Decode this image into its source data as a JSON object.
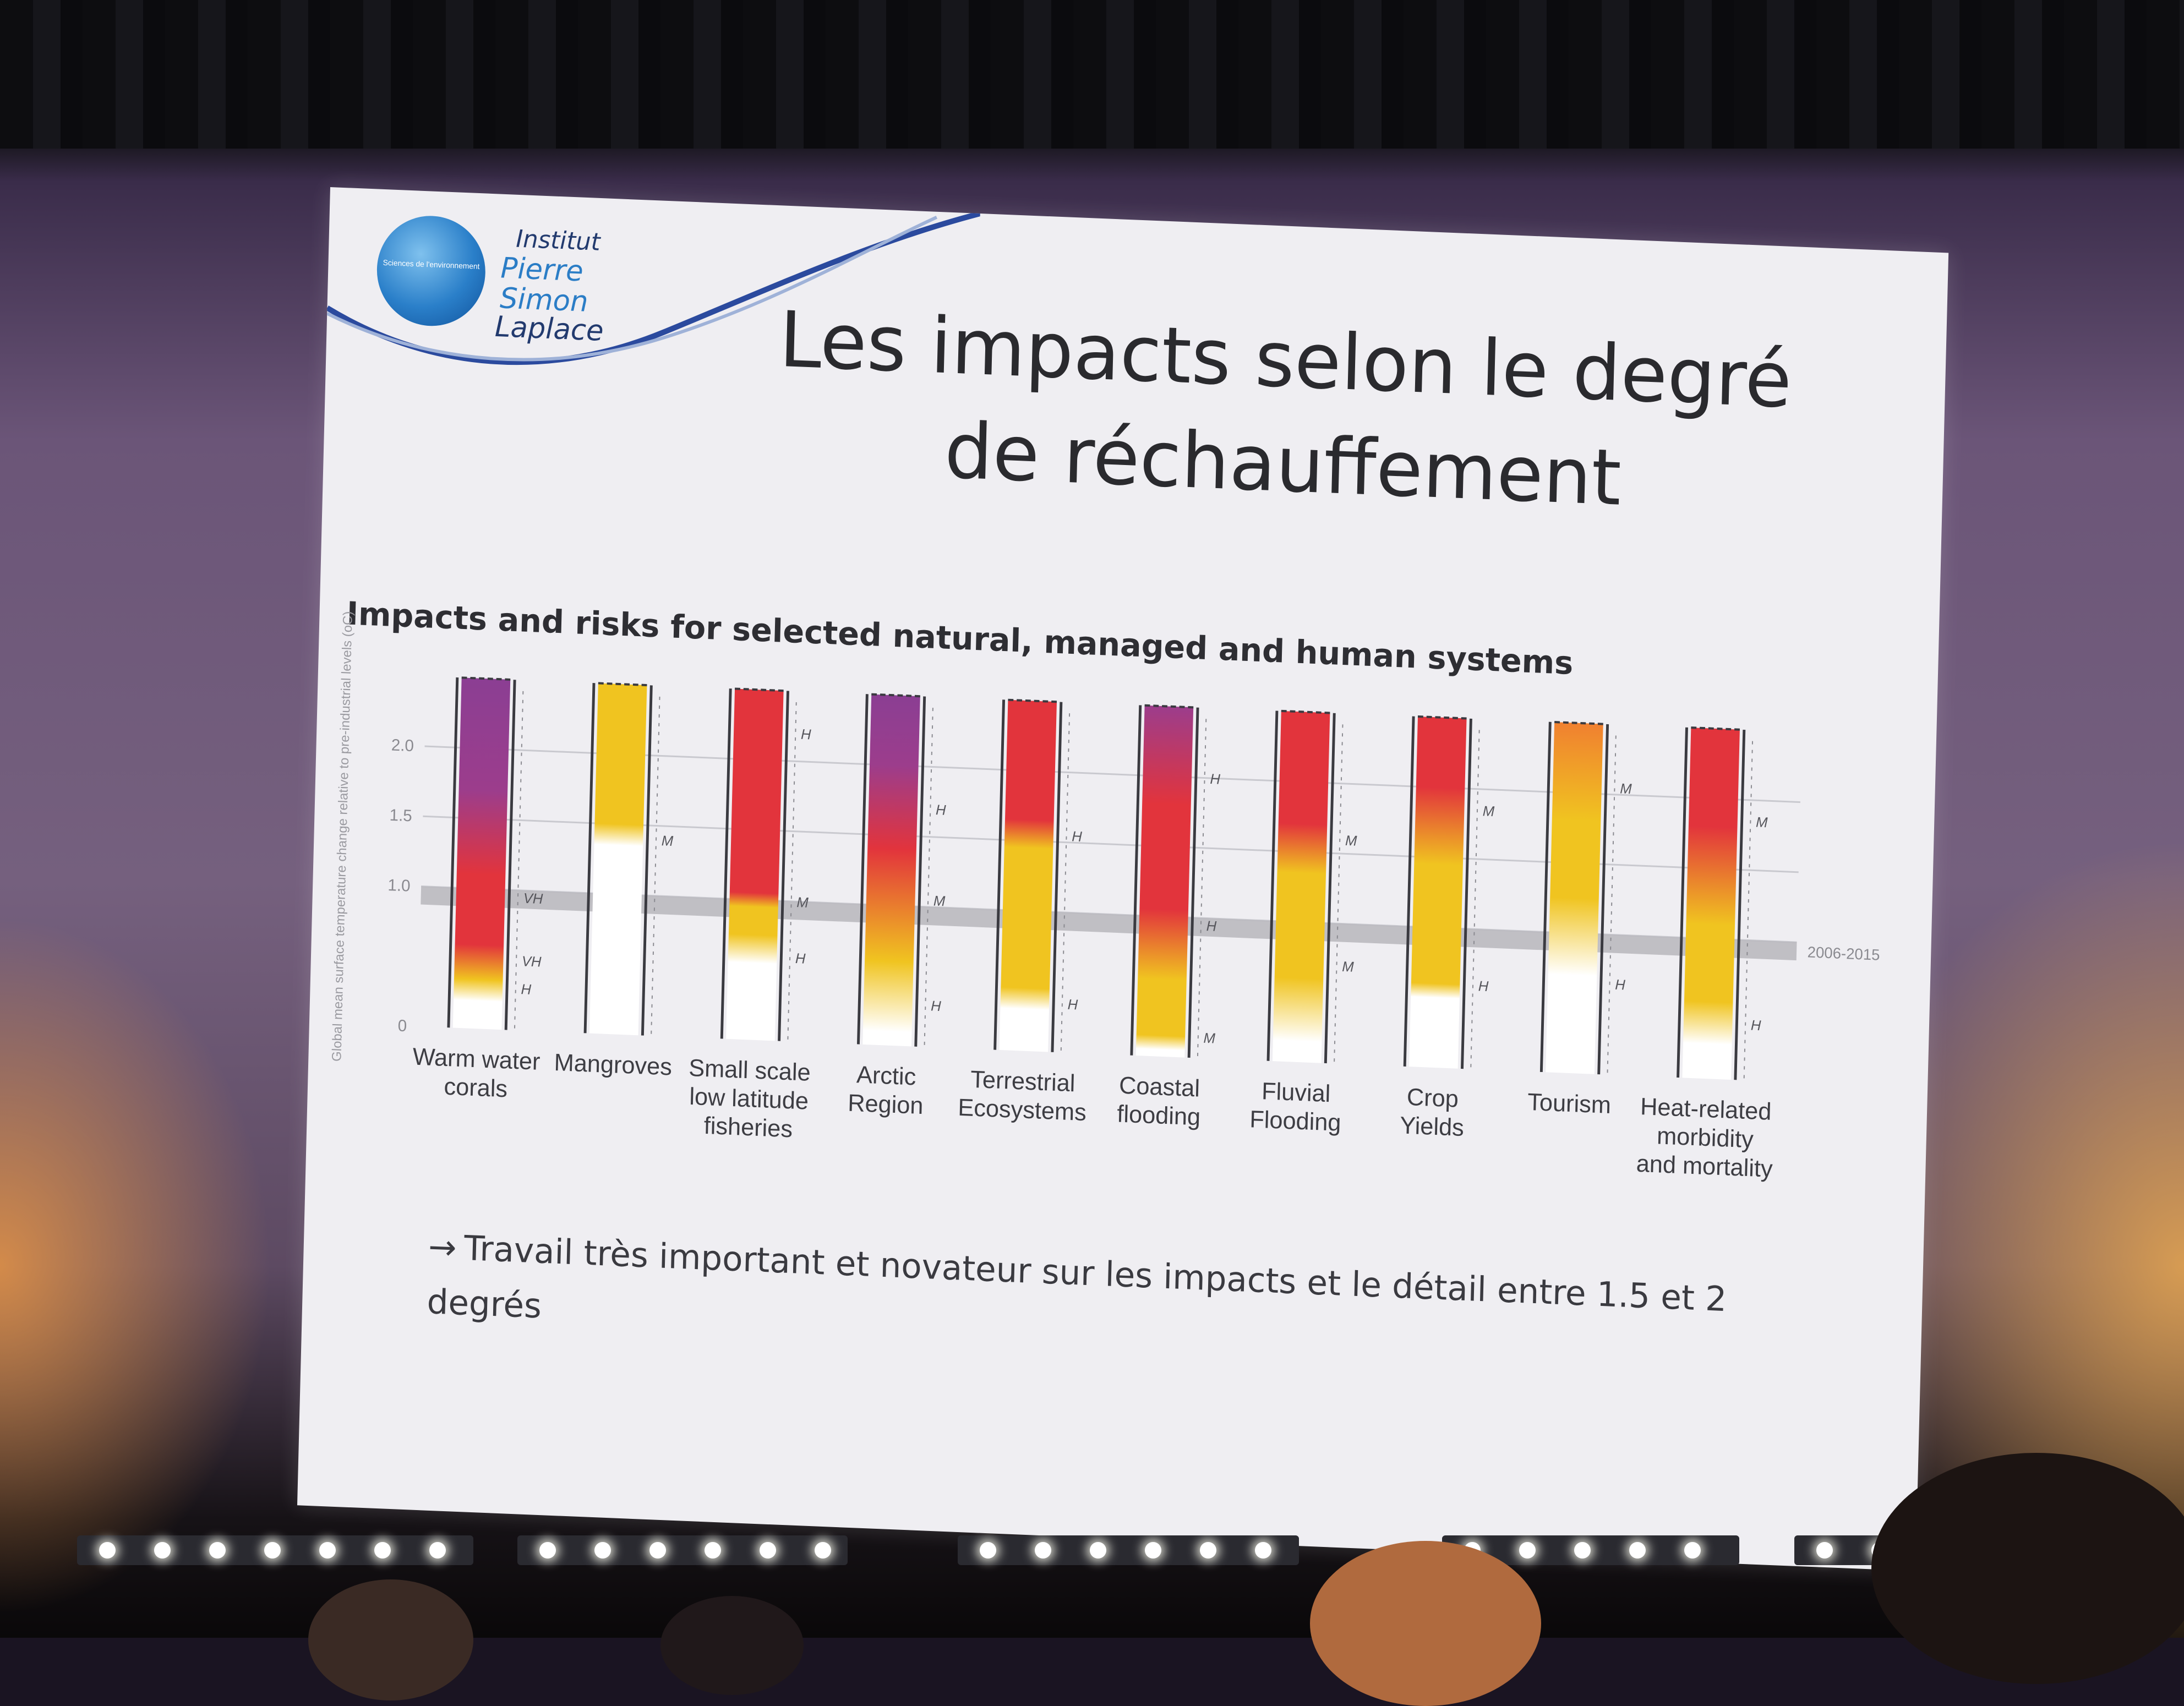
{
  "slide": {
    "logo": {
      "line1": "Institut",
      "line2": "Pierre",
      "line3": "Simon",
      "line4": "Laplace",
      "circle_text": "Sciences de l'environnement"
    },
    "title": "Les impacts selon le degré de réchauffement",
    "note_arrow": "→",
    "note": "Travail très important et novateur sur les impacts et le détail entre 1.5 et 2 degrés"
  },
  "chart_data": {
    "type": "bar",
    "title": "Impacts and risks for selected natural, managed and human systems",
    "ylabel": "Global mean surface temperature change relative to pre-industrial levels (oC)",
    "yticks": [
      "0",
      "1.0",
      "1.5",
      "2.0"
    ],
    "ylim": [
      0,
      2.5
    ],
    "reference_band": {
      "label": "2006-2015",
      "from": 0.87,
      "to": 1.0
    },
    "colors": {
      "undetectable": "#ffffff",
      "moderate": "#f0c420",
      "high": "#e2343c",
      "very_high": "#8b3e93"
    },
    "categories": [
      {
        "label": [
          "Warm water",
          "corals"
        ],
        "stops": [
          [
            0,
            "#ffffff"
          ],
          [
            0.2,
            "#ffffff"
          ],
          [
            0.35,
            "#f0c420"
          ],
          [
            0.6,
            "#e2343c"
          ],
          [
            1.1,
            "#e2343c"
          ],
          [
            1.7,
            "#9c3d8c"
          ],
          [
            2.5,
            "#8b3e93"
          ]
        ],
        "confidence": [
          {
            "text": "H",
            "y": 0.3
          },
          {
            "text": "VH",
            "y": 0.5
          },
          {
            "text": "VH",
            "y": 0.95
          }
        ]
      },
      {
        "label": [
          "Mangroves"
        ],
        "stops": [
          [
            0,
            "#ffffff"
          ],
          [
            1.35,
            "#ffffff"
          ],
          [
            1.5,
            "#f0c420"
          ],
          [
            2.5,
            "#f0c420"
          ]
        ],
        "confidence": [
          {
            "text": "M",
            "y": 1.4
          }
        ]
      },
      {
        "label": [
          "Small scale",
          "low latitude",
          "fisheries"
        ],
        "stops": [
          [
            0,
            "#ffffff"
          ],
          [
            0.55,
            "#ffffff"
          ],
          [
            0.75,
            "#f0c420"
          ],
          [
            0.95,
            "#f0c420"
          ],
          [
            1.05,
            "#e2343c"
          ],
          [
            2.5,
            "#e2343c"
          ]
        ],
        "confidence": [
          {
            "text": "H",
            "y": 0.6
          },
          {
            "text": "M",
            "y": 1.0
          },
          {
            "text": "H",
            "y": 2.2
          }
        ]
      },
      {
        "label": [
          "Arctic",
          "Region"
        ],
        "stops": [
          [
            0,
            "#ffffff"
          ],
          [
            0.1,
            "#ffffff"
          ],
          [
            0.6,
            "#f0c420"
          ],
          [
            1.4,
            "#e2343c"
          ],
          [
            2.0,
            "#9c3d8c"
          ],
          [
            2.5,
            "#8b3e93"
          ]
        ],
        "confidence": [
          {
            "text": "H",
            "y": 0.3
          },
          {
            "text": "M",
            "y": 1.05
          },
          {
            "text": "H",
            "y": 1.7
          }
        ]
      },
      {
        "label": [
          "Terrestrial",
          "Ecosystems"
        ],
        "stops": [
          [
            0,
            "#ffffff"
          ],
          [
            0.3,
            "#ffffff"
          ],
          [
            0.45,
            "#f0c420"
          ],
          [
            1.45,
            "#f0c420"
          ],
          [
            1.65,
            "#e2343c"
          ],
          [
            2.5,
            "#e2343c"
          ]
        ],
        "confidence": [
          {
            "text": "H",
            "y": 0.35
          },
          {
            "text": "H",
            "y": 1.55
          }
        ]
      },
      {
        "label": [
          "Coastal",
          "flooding"
        ],
        "stops": [
          [
            0,
            "#ffffff"
          ],
          [
            0.05,
            "#ffffff"
          ],
          [
            0.15,
            "#f0c420"
          ],
          [
            0.55,
            "#f0c420"
          ],
          [
            1.05,
            "#e2343c"
          ],
          [
            1.8,
            "#e2343c"
          ],
          [
            2.5,
            "#9c3d8c"
          ]
        ],
        "confidence": [
          {
            "text": "M",
            "y": 0.15
          },
          {
            "text": "H",
            "y": 0.95
          },
          {
            "text": "H",
            "y": 2.0
          }
        ]
      },
      {
        "label": [
          "Fluvial",
          "Flooding"
        ],
        "stops": [
          [
            0,
            "#ffffff"
          ],
          [
            0.15,
            "#ffffff"
          ],
          [
            0.6,
            "#f0c420"
          ],
          [
            1.35,
            "#f0c420"
          ],
          [
            1.7,
            "#e2343c"
          ],
          [
            2.5,
            "#e2343c"
          ]
        ],
        "confidence": [
          {
            "text": "M",
            "y": 0.7
          },
          {
            "text": "M",
            "y": 1.6
          }
        ]
      },
      {
        "label": [
          "Crop",
          "Yields"
        ],
        "stops": [
          [
            0,
            "#ffffff"
          ],
          [
            0.5,
            "#ffffff"
          ],
          [
            0.6,
            "#f0c420"
          ],
          [
            1.45,
            "#f0c420"
          ],
          [
            2.0,
            "#e2343c"
          ],
          [
            2.5,
            "#e2343c"
          ]
        ],
        "confidence": [
          {
            "text": "H",
            "y": 0.6
          },
          {
            "text": "M",
            "y": 1.85
          }
        ]
      },
      {
        "label": [
          "Tourism"
        ],
        "stops": [
          [
            0,
            "#ffffff"
          ],
          [
            0.7,
            "#ffffff"
          ],
          [
            1.25,
            "#f0c420"
          ],
          [
            1.8,
            "#f0c420"
          ],
          [
            2.5,
            "#f08030"
          ]
        ],
        "confidence": [
          {
            "text": "H",
            "y": 0.65
          },
          {
            "text": "M",
            "y": 2.05
          }
        ]
      },
      {
        "label": [
          "Heat-related",
          "morbidity",
          "and mortality"
        ],
        "stops": [
          [
            0,
            "#ffffff"
          ],
          [
            0.25,
            "#ffffff"
          ],
          [
            0.55,
            "#f0c420"
          ],
          [
            1.1,
            "#f0c420"
          ],
          [
            1.8,
            "#e2343c"
          ],
          [
            2.5,
            "#e2343c"
          ]
        ],
        "confidence": [
          {
            "text": "H",
            "y": 0.4
          },
          {
            "text": "M",
            "y": 1.85
          }
        ]
      }
    ]
  }
}
